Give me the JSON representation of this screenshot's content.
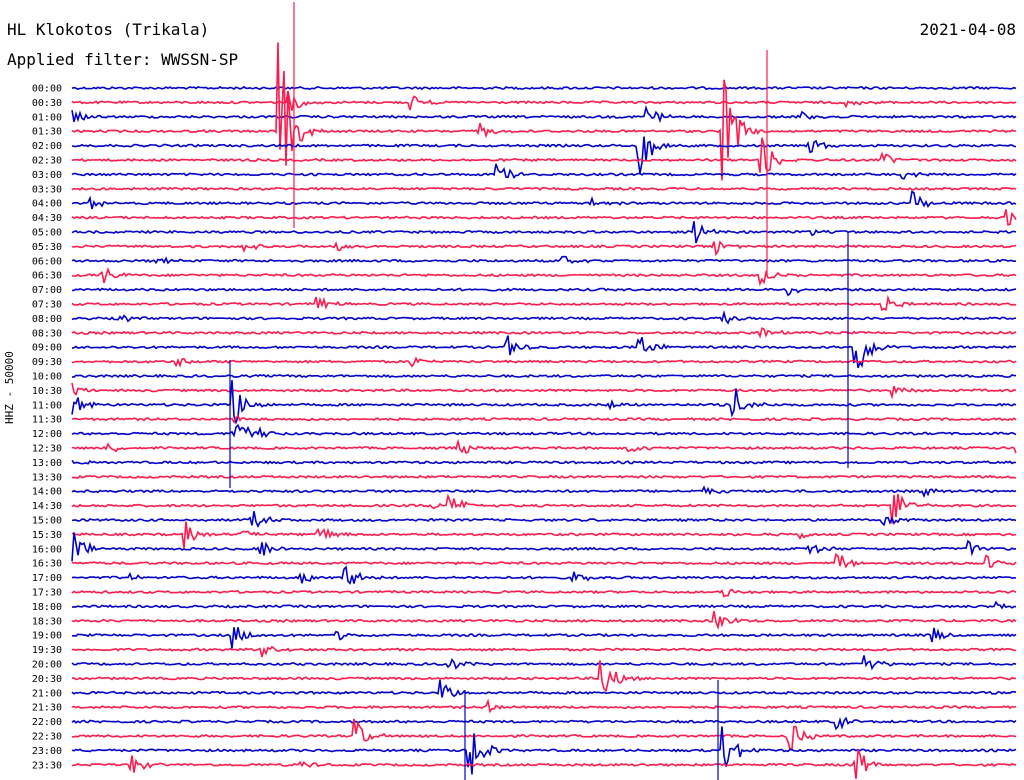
{
  "header": {
    "station": "HL Klokotos (Trikala)",
    "filter": "Applied filter: WWSSN-SP",
    "date": "2021-04-08"
  },
  "chart_data": {
    "type": "line",
    "title": "",
    "ylabel": "HHZ - 50000",
    "row_labels": [
      "00:00",
      "00:30",
      "01:00",
      "01:30",
      "02:00",
      "02:30",
      "03:00",
      "03:30",
      "04:00",
      "04:30",
      "05:00",
      "05:30",
      "06:00",
      "06:30",
      "07:00",
      "07:30",
      "08:00",
      "08:30",
      "09:00",
      "09:30",
      "10:00",
      "10:30",
      "11:00",
      "11:30",
      "12:00",
      "12:30",
      "13:00",
      "13:30",
      "14:00",
      "14:30",
      "15:00",
      "15:30",
      "16:00",
      "16:30",
      "17:00",
      "17:30",
      "18:00",
      "18:30",
      "19:00",
      "19:30",
      "20:00",
      "20:30",
      "21:00",
      "21:30",
      "22:00",
      "22:30",
      "23:00",
      "23:30"
    ],
    "colors": [
      "#0000cc",
      "#ff1a4d"
    ],
    "events": [
      {
        "row": 1,
        "t": 0.23,
        "amp": 12
      },
      {
        "row": 1,
        "t": 0.36,
        "amp": 8
      },
      {
        "row": 1,
        "t": 0.82,
        "amp": 6
      },
      {
        "row": 2,
        "t": 0.0,
        "amp": 8
      },
      {
        "row": 2,
        "t": 0.61,
        "amp": 12
      },
      {
        "row": 2,
        "t": 0.77,
        "amp": 6
      },
      {
        "row": 3,
        "t": 0.22,
        "amp": 90
      },
      {
        "row": 3,
        "t": 0.43,
        "amp": 10
      },
      {
        "row": 3,
        "t": 0.69,
        "amp": 60
      },
      {
        "row": 4,
        "t": 0.6,
        "amp": 35
      },
      {
        "row": 4,
        "t": 0.78,
        "amp": 12
      },
      {
        "row": 5,
        "t": 0.73,
        "amp": 25
      },
      {
        "row": 5,
        "t": 0.86,
        "amp": 8
      },
      {
        "row": 6,
        "t": 0.45,
        "amp": 12
      },
      {
        "row": 6,
        "t": 0.88,
        "amp": 6
      },
      {
        "row": 8,
        "t": 0.02,
        "amp": 8
      },
      {
        "row": 8,
        "t": 0.55,
        "amp": 6
      },
      {
        "row": 8,
        "t": 0.89,
        "amp": 15
      },
      {
        "row": 9,
        "t": 0.99,
        "amp": 10
      },
      {
        "row": 10,
        "t": 0.66,
        "amp": 12
      },
      {
        "row": 10,
        "t": 0.78,
        "amp": 4
      },
      {
        "row": 11,
        "t": 0.18,
        "amp": 6
      },
      {
        "row": 11,
        "t": 0.28,
        "amp": 6
      },
      {
        "row": 11,
        "t": 0.68,
        "amp": 10
      },
      {
        "row": 12,
        "t": 0.09,
        "amp": 6
      },
      {
        "row": 12,
        "t": 0.52,
        "amp": 6
      },
      {
        "row": 13,
        "t": 0.03,
        "amp": 12
      },
      {
        "row": 13,
        "t": 0.73,
        "amp": 10
      },
      {
        "row": 14,
        "t": 0.76,
        "amp": 5
      },
      {
        "row": 15,
        "t": 0.26,
        "amp": 10
      },
      {
        "row": 15,
        "t": 0.86,
        "amp": 10
      },
      {
        "row": 16,
        "t": 0.05,
        "amp": 6
      },
      {
        "row": 16,
        "t": 0.69,
        "amp": 6
      },
      {
        "row": 17,
        "t": 0.73,
        "amp": 6
      },
      {
        "row": 18,
        "t": 0.46,
        "amp": 15
      },
      {
        "row": 18,
        "t": 0.6,
        "amp": 18
      },
      {
        "row": 18,
        "t": 0.83,
        "amp": 40
      },
      {
        "row": 19,
        "t": 0.11,
        "amp": 6
      },
      {
        "row": 19,
        "t": 0.36,
        "amp": 6
      },
      {
        "row": 21,
        "t": 0.0,
        "amp": 8
      },
      {
        "row": 21,
        "t": 0.87,
        "amp": 6
      },
      {
        "row": 22,
        "t": 0.0,
        "amp": 12
      },
      {
        "row": 22,
        "t": 0.17,
        "amp": 30
      },
      {
        "row": 22,
        "t": 0.57,
        "amp": 6
      },
      {
        "row": 22,
        "t": 0.7,
        "amp": 22
      },
      {
        "row": 23,
        "t": 0.17,
        "amp": 6
      },
      {
        "row": 24,
        "t": 0.17,
        "amp": 30
      },
      {
        "row": 24,
        "t": 0.2,
        "amp": 6
      },
      {
        "row": 25,
        "t": 0.04,
        "amp": 6
      },
      {
        "row": 25,
        "t": 0.41,
        "amp": 8
      },
      {
        "row": 25,
        "t": 0.59,
        "amp": 8
      },
      {
        "row": 25,
        "t": 1.0,
        "amp": 6
      },
      {
        "row": 26,
        "t": 0.0,
        "amp": 4
      },
      {
        "row": 28,
        "t": 0.67,
        "amp": 6
      },
      {
        "row": 28,
        "t": 0.9,
        "amp": 6
      },
      {
        "row": 29,
        "t": 0.38,
        "amp": 8
      },
      {
        "row": 29,
        "t": 0.4,
        "amp": 14
      },
      {
        "row": 29,
        "t": 0.87,
        "amp": 22
      },
      {
        "row": 30,
        "t": 0.19,
        "amp": 12
      },
      {
        "row": 30,
        "t": 0.86,
        "amp": 6
      },
      {
        "row": 31,
        "t": 0.12,
        "amp": 14
      },
      {
        "row": 31,
        "t": 0.18,
        "amp": 8
      },
      {
        "row": 31,
        "t": 0.26,
        "amp": 12
      },
      {
        "row": 31,
        "t": 0.77,
        "amp": 8
      },
      {
        "row": 32,
        "t": 0.0,
        "amp": 20
      },
      {
        "row": 32,
        "t": 0.2,
        "amp": 10
      },
      {
        "row": 32,
        "t": 0.78,
        "amp": 10
      },
      {
        "row": 32,
        "t": 0.95,
        "amp": 8
      },
      {
        "row": 33,
        "t": 0.81,
        "amp": 12
      },
      {
        "row": 33,
        "t": 0.97,
        "amp": 8
      },
      {
        "row": 34,
        "t": 0.06,
        "amp": 6
      },
      {
        "row": 34,
        "t": 0.24,
        "amp": 8
      },
      {
        "row": 34,
        "t": 0.29,
        "amp": 15
      },
      {
        "row": 34,
        "t": 0.53,
        "amp": 8
      },
      {
        "row": 35,
        "t": 0.69,
        "amp": 6
      },
      {
        "row": 36,
        "t": 0.98,
        "amp": 6
      },
      {
        "row": 37,
        "t": 0.68,
        "amp": 14
      },
      {
        "row": 38,
        "t": 0.17,
        "amp": 14
      },
      {
        "row": 38,
        "t": 0.28,
        "amp": 6
      },
      {
        "row": 38,
        "t": 0.91,
        "amp": 10
      },
      {
        "row": 39,
        "t": 0.2,
        "amp": 12
      },
      {
        "row": 40,
        "t": 0.4,
        "amp": 8
      },
      {
        "row": 40,
        "t": 0.84,
        "amp": 14
      },
      {
        "row": 41,
        "t": 0.56,
        "amp": 30
      },
      {
        "row": 42,
        "t": 0.39,
        "amp": 14
      },
      {
        "row": 43,
        "t": 0.44,
        "amp": 6
      },
      {
        "row": 44,
        "t": 0.81,
        "amp": 8
      },
      {
        "row": 45,
        "t": 0.3,
        "amp": 18
      },
      {
        "row": 45,
        "t": 0.76,
        "amp": 18
      },
      {
        "row": 46,
        "t": 0.42,
        "amp": 40
      },
      {
        "row": 46,
        "t": 0.69,
        "amp": 30
      },
      {
        "row": 47,
        "t": 0.06,
        "amp": 14
      },
      {
        "row": 47,
        "t": 0.24,
        "amp": 6
      },
      {
        "row": 47,
        "t": 0.83,
        "amp": 20
      }
    ]
  }
}
